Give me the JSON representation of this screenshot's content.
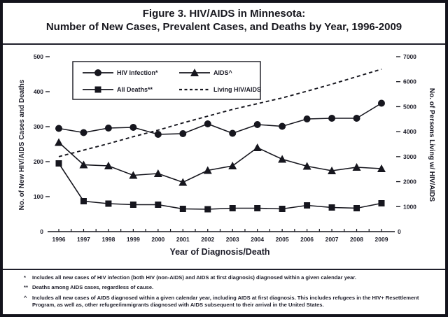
{
  "figure": {
    "title_line1": "Figure 3. HIV/AIDS in Minnesota:",
    "title_line2": "Number of New Cases, Prevalent Cases, and Deaths by Year, 1996-2009"
  },
  "chart_data": {
    "type": "line",
    "title": "Figure 3. HIV/AIDS in Minnesota: Number of New Cases, Prevalent Cases, and Deaths by Year, 1996-2009",
    "x_categories": [
      "1996",
      "1997",
      "1998",
      "1999",
      "2000",
      "2001",
      "2002",
      "2003",
      "2004",
      "2005",
      "2006",
      "2007",
      "2008",
      "2009"
    ],
    "xlabel": "Year of Diagnosis/Death",
    "left_axis": {
      "label": "No. of New HIV/AIDS Cases and Deaths",
      "ticks": [
        0,
        100,
        200,
        300,
        400,
        500
      ],
      "range": [
        0,
        500
      ],
      "grid": false
    },
    "right_axis": {
      "label": "No. of Persons Living w/ HIV/AIDS",
      "ticks": [
        0,
        1000,
        2000,
        3000,
        4000,
        5000,
        6000,
        7000
      ],
      "range": [
        0,
        7000
      ],
      "grid": false
    },
    "series": [
      {
        "name": "HIV Infection*",
        "marker": "circle",
        "line": "solid",
        "axis": "left",
        "values": [
          295,
          283,
          296,
          298,
          278,
          280,
          308,
          281,
          306,
          301,
          322,
          324,
          324,
          367
        ]
      },
      {
        "name": "AIDS^",
        "marker": "triangle",
        "line": "solid",
        "axis": "left",
        "values": [
          255,
          191,
          188,
          161,
          166,
          141,
          175,
          188,
          240,
          207,
          187,
          174,
          184,
          180
        ]
      },
      {
        "name": "All Deaths**",
        "marker": "square",
        "line": "solid",
        "axis": "left",
        "values": [
          195,
          87,
          80,
          77,
          77,
          65,
          64,
          67,
          67,
          65,
          75,
          69,
          67,
          81
        ]
      },
      {
        "name": "Living HIV/AIDS",
        "marker": "none",
        "line": "dashed",
        "axis": "right",
        "values": [
          3000,
          3260,
          3520,
          3800,
          4060,
          4350,
          4620,
          4890,
          5120,
          5350,
          5620,
          5900,
          6200,
          6500
        ]
      }
    ],
    "legend": {
      "position": "top-left-inside",
      "rows": [
        [
          "HIV Infection*",
          "AIDS^"
        ],
        [
          "All Deaths**",
          "Living HIV/AIDS"
        ]
      ]
    }
  },
  "footnotes": [
    {
      "marker": "*",
      "text": "Includes all new cases of HIV infection (both HIV (non-AIDS) and AIDS at first diagnosis) diagnosed within a given calendar year."
    },
    {
      "marker": "**",
      "text": "Deaths among AIDS cases, regardless of cause."
    },
    {
      "marker": "^",
      "text": "Includes all new cases of AIDS diagnosed within a given calendar year, including AIDS at first diagnosis. This includes refugees in the HIV+ Resettlement Program, as well as, other refugee/immigrants diagnosed with AIDS subsequent to their arrival in the United States."
    }
  ],
  "colors": {
    "ink": "#1c1c28",
    "line": "#16161e",
    "background": "#ffffff",
    "border": "#13131c"
  }
}
